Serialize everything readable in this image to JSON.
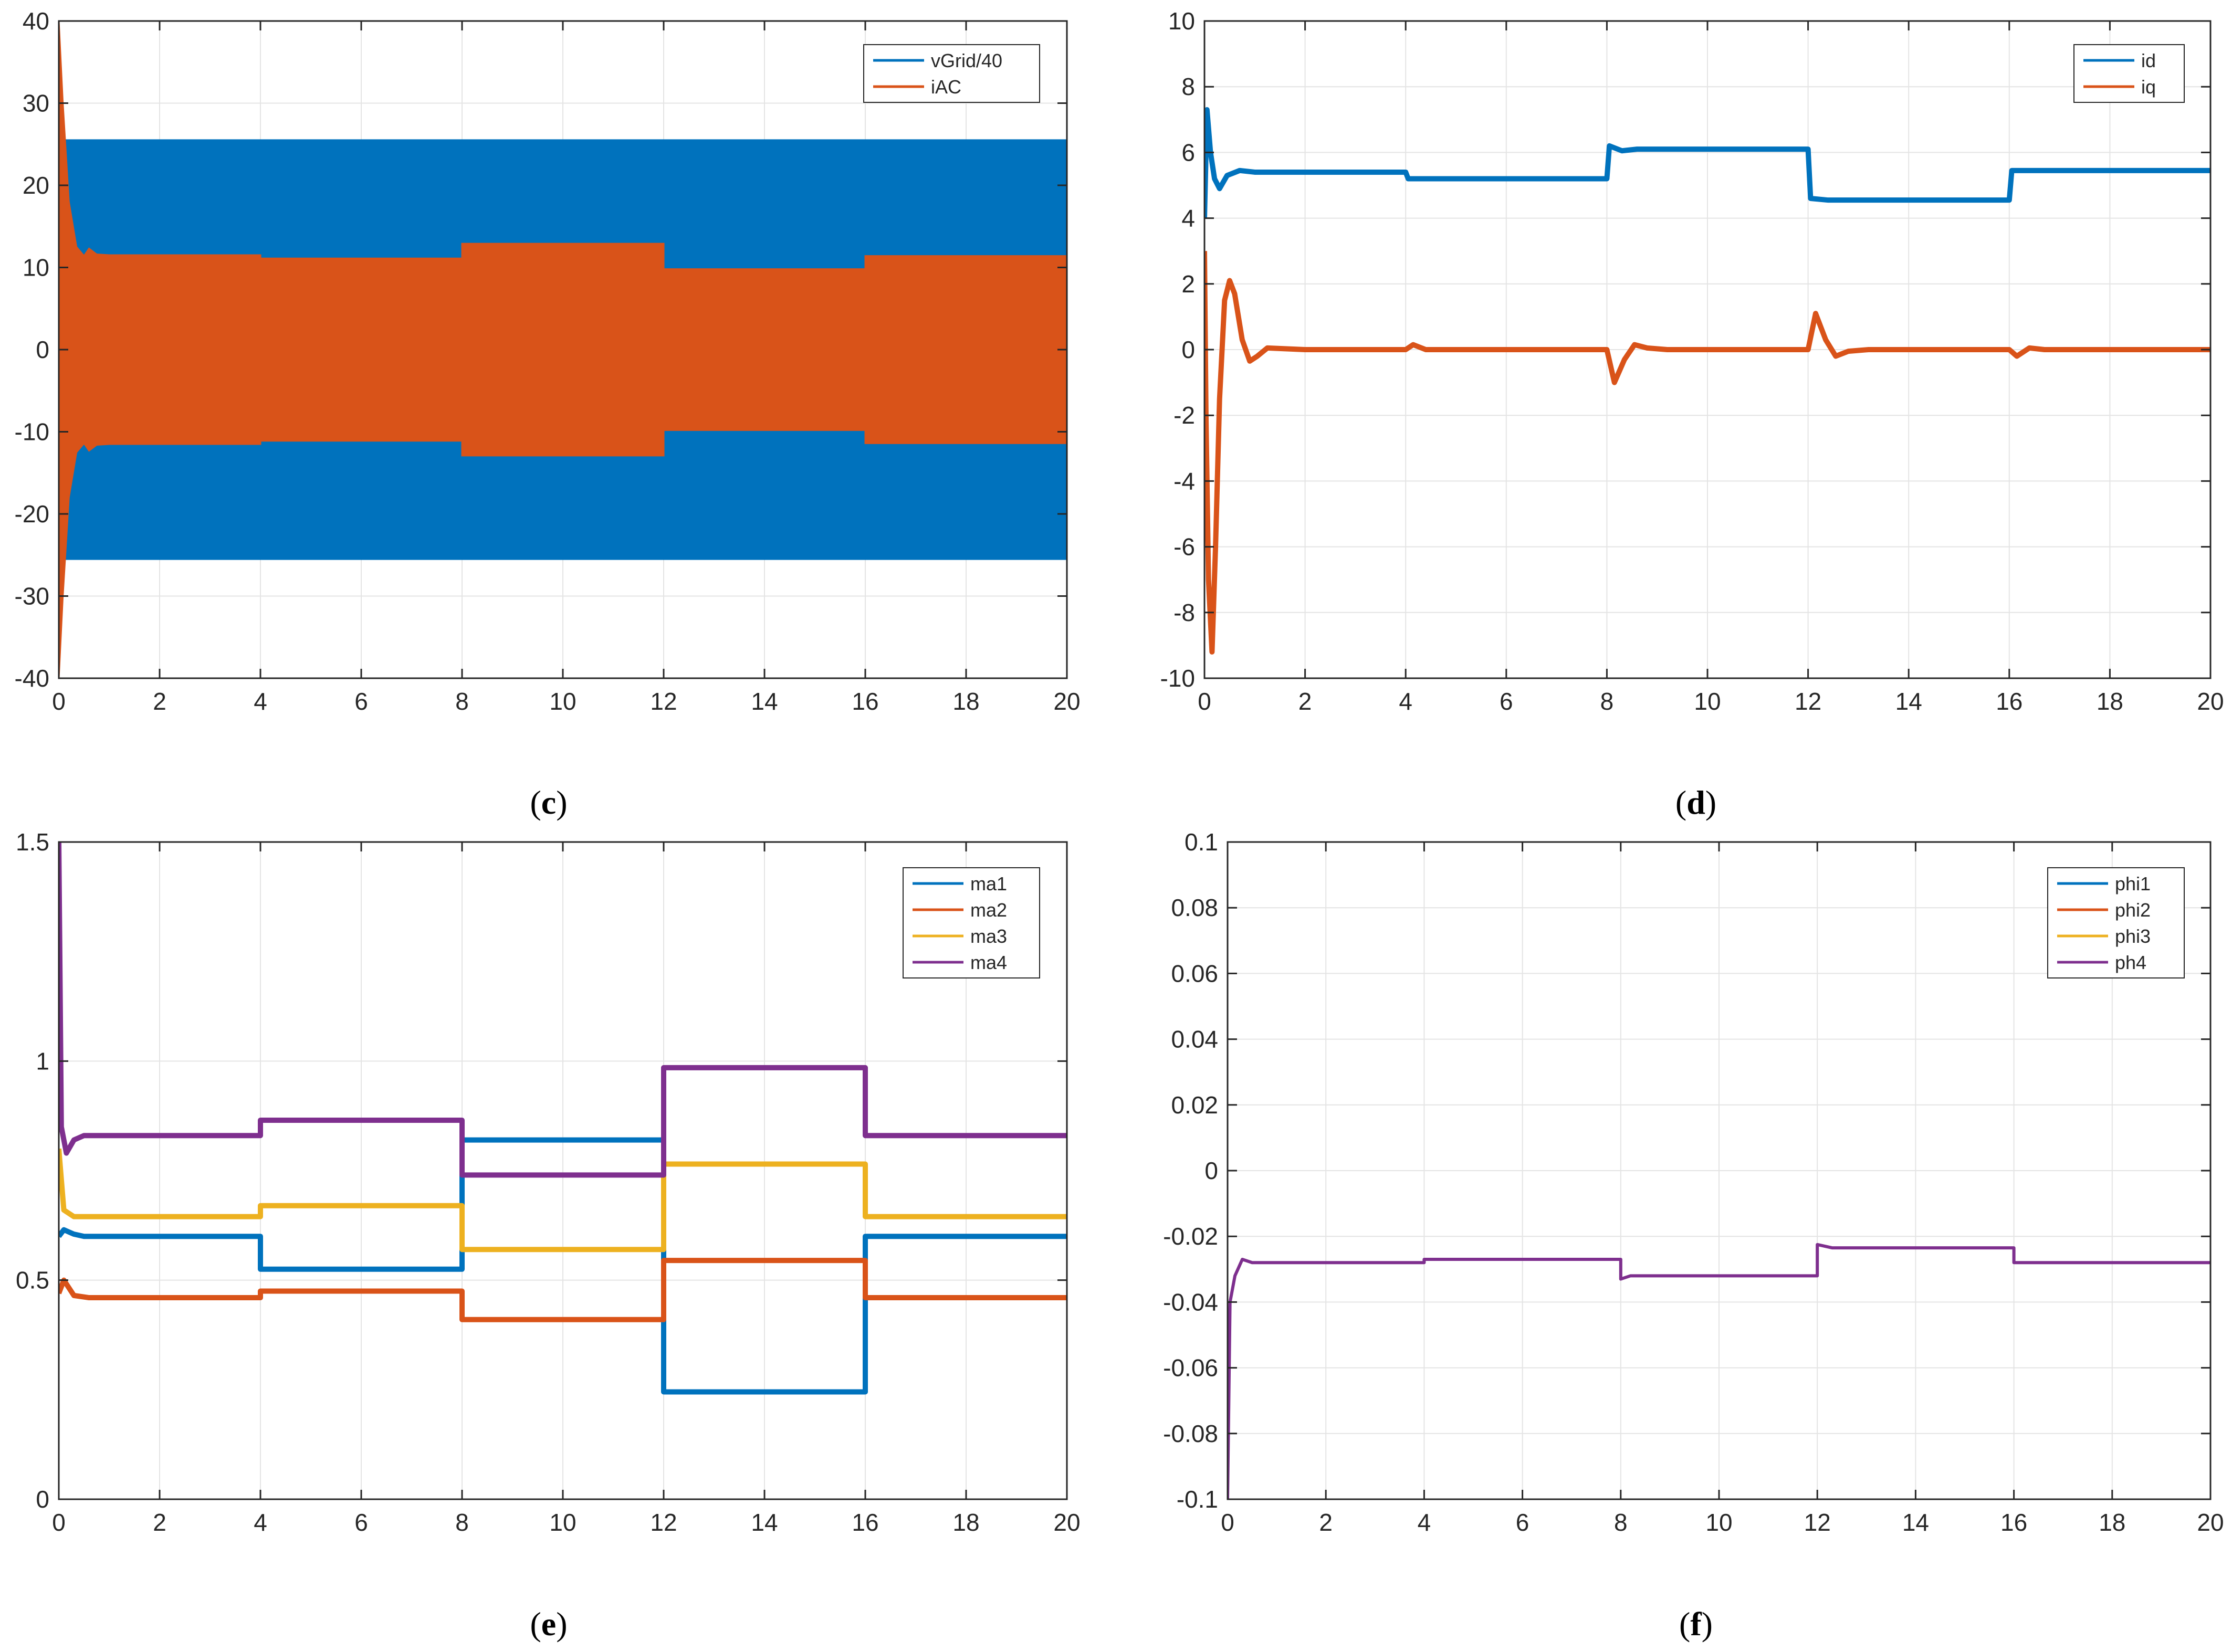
{
  "colors": {
    "blue": "#0072BD",
    "orange": "#D95319",
    "yellow": "#EDB120",
    "purple": "#7E2F8E",
    "grid": "#E4E4E4",
    "axis": "#262626"
  },
  "chart_data": [
    {
      "panel": "c",
      "caption": {
        "open": "(",
        "letter": "c",
        "close": ")"
      },
      "type": "line",
      "xlim": [
        0,
        20
      ],
      "ylim": [
        -40,
        40
      ],
      "xticks": [
        "0",
        "2",
        "4",
        "6",
        "8",
        "10",
        "12",
        "14",
        "16",
        "18",
        "20"
      ],
      "yticks": [
        "40",
        "30",
        "20",
        "10",
        "0",
        "-10",
        "-20",
        "-30",
        "-40"
      ],
      "grid": true,
      "legend_position": "top-right",
      "series": [
        {
          "name": "vGrid/40",
          "color_key": "blue",
          "kind": "envelope",
          "envelope": [
            [
              0,
              25.5
            ],
            [
              20,
              25.5
            ]
          ]
        },
        {
          "name": "iAC",
          "color_key": "orange",
          "kind": "envelope",
          "envelope": [
            [
              0,
              40
            ],
            [
              0.08,
              30
            ],
            [
              0.2,
              18
            ],
            [
              0.35,
              12.5
            ],
            [
              0.5,
              11.4
            ],
            [
              0.6,
              12.3
            ],
            [
              0.75,
              11.6
            ],
            [
              1,
              11.5
            ],
            [
              4,
              11.5
            ],
            [
              4,
              11.1
            ],
            [
              8,
              11.1
            ],
            [
              8,
              12.9
            ],
            [
              12,
              12.9
            ],
            [
              12,
              9.8
            ],
            [
              16,
              9.8
            ],
            [
              16,
              11.4
            ],
            [
              20,
              11.4
            ]
          ]
        }
      ]
    },
    {
      "panel": "d",
      "caption": {
        "open": "(",
        "letter": "d",
        "close": ")"
      },
      "type": "line",
      "xlim": [
        0,
        20
      ],
      "ylim": [
        -10,
        10
      ],
      "xticks": [
        "0",
        "2",
        "4",
        "6",
        "8",
        "10",
        "12",
        "14",
        "16",
        "18",
        "20"
      ],
      "yticks": [
        "10",
        "8",
        "6",
        "4",
        "2",
        "0",
        "-2",
        "-4",
        "-6",
        "-8",
        "-10"
      ],
      "grid": true,
      "legend_position": "top-right",
      "series": [
        {
          "name": "id",
          "color_key": "blue",
          "points": [
            [
              0,
              4
            ],
            [
              0.05,
              7.3
            ],
            [
              0.12,
              6
            ],
            [
              0.2,
              5.2
            ],
            [
              0.3,
              4.9
            ],
            [
              0.45,
              5.3
            ],
            [
              0.7,
              5.45
            ],
            [
              1,
              5.4
            ],
            [
              4,
              5.4
            ],
            [
              4.05,
              5.2
            ],
            [
              8,
              5.2
            ],
            [
              8.05,
              6.2
            ],
            [
              8.3,
              6.05
            ],
            [
              8.6,
              6.1
            ],
            [
              12,
              6.1
            ],
            [
              12.05,
              4.6
            ],
            [
              12.4,
              4.55
            ],
            [
              16,
              4.55
            ],
            [
              16.05,
              5.45
            ],
            [
              20,
              5.45
            ]
          ]
        },
        {
          "name": "iq",
          "color_key": "orange",
          "points": [
            [
              0,
              3
            ],
            [
              0.03,
              -2
            ],
            [
              0.08,
              -7
            ],
            [
              0.15,
              -9.2
            ],
            [
              0.22,
              -6
            ],
            [
              0.3,
              -1.5
            ],
            [
              0.4,
              1.5
            ],
            [
              0.5,
              2.1
            ],
            [
              0.6,
              1.7
            ],
            [
              0.75,
              0.3
            ],
            [
              0.9,
              -0.35
            ],
            [
              1.05,
              -0.2
            ],
            [
              1.25,
              0.05
            ],
            [
              2,
              0
            ],
            [
              4,
              0
            ],
            [
              4.15,
              0.15
            ],
            [
              4.4,
              0
            ],
            [
              8,
              0
            ],
            [
              8.15,
              -1.0
            ],
            [
              8.35,
              -0.3
            ],
            [
              8.55,
              0.15
            ],
            [
              8.8,
              0.05
            ],
            [
              9.2,
              0
            ],
            [
              12,
              0
            ],
            [
              12.15,
              1.1
            ],
            [
              12.35,
              0.3
            ],
            [
              12.55,
              -0.2
            ],
            [
              12.8,
              -0.05
            ],
            [
              13.2,
              0
            ],
            [
              16,
              0
            ],
            [
              16.15,
              -0.2
            ],
            [
              16.4,
              0.05
            ],
            [
              16.7,
              0
            ],
            [
              20,
              0
            ]
          ]
        }
      ]
    },
    {
      "panel": "e",
      "caption": {
        "open": "(",
        "letter": "e",
        "close": ")"
      },
      "type": "line",
      "xlim": [
        0,
        20
      ],
      "ylim": [
        0,
        1.5
      ],
      "xticks": [
        "0",
        "2",
        "4",
        "6",
        "8",
        "10",
        "12",
        "14",
        "16",
        "18",
        "20"
      ],
      "yticks": [
        "1.5",
        "1",
        "0.5",
        "0"
      ],
      "grid": true,
      "legend_position": "top-right",
      "series": [
        {
          "name": "ma1",
          "color_key": "blue",
          "points": [
            [
              0,
              0.6
            ],
            [
              0.1,
              0.615
            ],
            [
              0.3,
              0.605
            ],
            [
              0.5,
              0.6
            ],
            [
              4,
              0.6
            ],
            [
              4,
              0.525
            ],
            [
              8,
              0.525
            ],
            [
              8,
              0.82
            ],
            [
              12,
              0.82
            ],
            [
              12,
              0.245
            ],
            [
              16,
              0.245
            ],
            [
              16,
              0.6
            ],
            [
              20,
              0.6
            ]
          ]
        },
        {
          "name": "ma2",
          "color_key": "orange",
          "points": [
            [
              0,
              0.47
            ],
            [
              0.1,
              0.5
            ],
            [
              0.3,
              0.465
            ],
            [
              0.6,
              0.46
            ],
            [
              4,
              0.46
            ],
            [
              4,
              0.475
            ],
            [
              8,
              0.475
            ],
            [
              8,
              0.41
            ],
            [
              12,
              0.41
            ],
            [
              12,
              0.545
            ],
            [
              16,
              0.545
            ],
            [
              16,
              0.46
            ],
            [
              20,
              0.46
            ]
          ]
        },
        {
          "name": "ma3",
          "color_key": "yellow",
          "points": [
            [
              0,
              0.8
            ],
            [
              0.1,
              0.66
            ],
            [
              0.3,
              0.645
            ],
            [
              0.6,
              0.645
            ],
            [
              4,
              0.645
            ],
            [
              4,
              0.67
            ],
            [
              8,
              0.67
            ],
            [
              8,
              0.57
            ],
            [
              12,
              0.57
            ],
            [
              12,
              0.765
            ],
            [
              16,
              0.765
            ],
            [
              16,
              0.645
            ],
            [
              20,
              0.645
            ]
          ]
        },
        {
          "name": "ma4",
          "color_key": "purple",
          "points": [
            [
              0,
              1.5
            ],
            [
              0.05,
              0.85
            ],
            [
              0.15,
              0.79
            ],
            [
              0.3,
              0.82
            ],
            [
              0.5,
              0.83
            ],
            [
              4,
              0.83
            ],
            [
              4,
              0.865
            ],
            [
              8,
              0.865
            ],
            [
              8,
              0.74
            ],
            [
              12,
              0.74
            ],
            [
              12,
              0.985
            ],
            [
              16,
              0.985
            ],
            [
              16,
              0.83
            ],
            [
              20,
              0.83
            ]
          ]
        }
      ]
    },
    {
      "panel": "f",
      "caption": {
        "open": "(",
        "letter": "f",
        "close": ")"
      },
      "type": "line",
      "xlim": [
        0,
        20
      ],
      "ylim": [
        -0.1,
        0.1
      ],
      "xticks": [
        "0",
        "2",
        "4",
        "6",
        "8",
        "10",
        "12",
        "14",
        "16",
        "18",
        "20"
      ],
      "yticks": [
        "0.1",
        "0.08",
        "0.06",
        "0.04",
        "0.02",
        "0",
        "-0.02",
        "-0.04",
        "-0.06",
        "-0.08",
        "-0.1"
      ],
      "grid": true,
      "legend_position": "top-right",
      "series": [
        {
          "name": "phi1",
          "color_key": "blue",
          "points": []
        },
        {
          "name": "phi2",
          "color_key": "orange",
          "points": []
        },
        {
          "name": "phi3",
          "color_key": "yellow",
          "points": []
        },
        {
          "name": "ph4",
          "color_key": "purple",
          "points": [
            [
              0,
              -0.1
            ],
            [
              0.05,
              -0.04
            ],
            [
              0.15,
              -0.032
            ],
            [
              0.3,
              -0.027
            ],
            [
              0.5,
              -0.028
            ],
            [
              4,
              -0.028
            ],
            [
              4,
              -0.027
            ],
            [
              8,
              -0.027
            ],
            [
              8,
              -0.033
            ],
            [
              8.2,
              -0.032
            ],
            [
              12,
              -0.032
            ],
            [
              12,
              -0.0225
            ],
            [
              12.3,
              -0.0235
            ],
            [
              16,
              -0.0235
            ],
            [
              16,
              -0.028
            ],
            [
              20,
              -0.028
            ]
          ]
        }
      ]
    }
  ]
}
